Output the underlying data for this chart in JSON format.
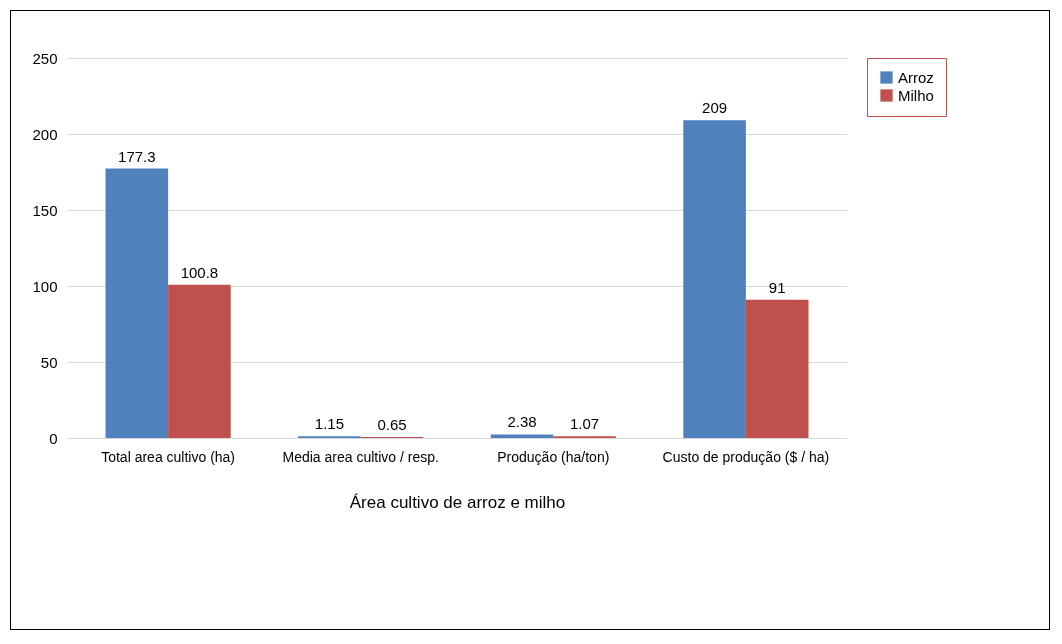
{
  "chart_data": {
    "type": "bar",
    "xlabel": "Área cultivo de arroz e milho",
    "categories": [
      "Total area cultivo (ha)",
      "Media area cultivo / resp.",
      "Produção (ha/ton)",
      "Custo de produção ($ / ha)"
    ],
    "series": [
      {
        "name": "Arroz",
        "color": "#4f81bd",
        "values": [
          177.3,
          1.15,
          2.38,
          209
        ]
      },
      {
        "name": "Milho",
        "color": "#c0504d",
        "values": [
          100.8,
          0.65,
          1.07,
          91
        ]
      }
    ],
    "ylim": [
      0,
      250
    ],
    "yticks": [
      0,
      50,
      100,
      150,
      200,
      250
    ],
    "grid": "y",
    "legend": "right",
    "data_labels": true
  }
}
